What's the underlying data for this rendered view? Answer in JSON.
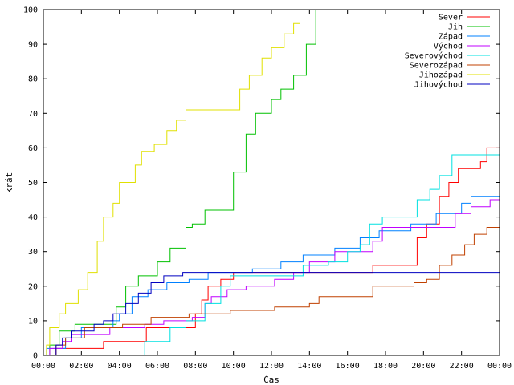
{
  "chart_data": {
    "type": "line",
    "title": "",
    "xlabel": "Čas",
    "ylabel": "krát",
    "xlim": [
      "00:00",
      "24:00"
    ],
    "ylim": [
      0,
      100
    ],
    "x_ticks": [
      "00:00",
      "02:00",
      "04:00",
      "06:00",
      "08:00",
      "10:00",
      "12:00",
      "14:00",
      "16:00",
      "18:00",
      "20:00",
      "22:00",
      "00:00"
    ],
    "y_ticks": [
      0,
      10,
      20,
      30,
      40,
      50,
      60,
      70,
      80,
      90,
      100
    ],
    "grid": false,
    "legend_position": "top-right",
    "step": true,
    "series": [
      {
        "name": "Sever",
        "color": "#ff0000",
        "points": [
          [
            "00:00",
            0
          ],
          [
            "00:30",
            0
          ],
          [
            "00:40",
            2
          ],
          [
            "03:05",
            2
          ],
          [
            "03:10",
            4
          ],
          [
            "05:20",
            4
          ],
          [
            "05:25",
            8
          ],
          [
            "07:50",
            8
          ],
          [
            "08:00",
            12
          ],
          [
            "08:20",
            16
          ],
          [
            "08:40",
            20
          ],
          [
            "09:20",
            22
          ],
          [
            "10:00",
            24
          ],
          [
            "17:00",
            24
          ],
          [
            "17:20",
            26
          ],
          [
            "19:20",
            26
          ],
          [
            "19:40",
            34
          ],
          [
            "20:10",
            38
          ],
          [
            "20:50",
            46
          ],
          [
            "21:20",
            50
          ],
          [
            "21:50",
            54
          ],
          [
            "23:00",
            56
          ],
          [
            "23:20",
            60
          ],
          [
            "24:00",
            63
          ]
        ]
      },
      {
        "name": "Jih",
        "color": "#00c000",
        "points": [
          [
            "00:00",
            0
          ],
          [
            "00:20",
            3
          ],
          [
            "00:50",
            7
          ],
          [
            "01:40",
            9
          ],
          [
            "03:00",
            9
          ],
          [
            "03:50",
            14
          ],
          [
            "04:20",
            20
          ],
          [
            "05:00",
            23
          ],
          [
            "06:00",
            27
          ],
          [
            "06:40",
            31
          ],
          [
            "07:30",
            37
          ],
          [
            "07:50",
            38
          ],
          [
            "08:30",
            42
          ],
          [
            "09:45",
            42
          ],
          [
            "10:00",
            53
          ],
          [
            "10:40",
            64
          ],
          [
            "11:10",
            70
          ],
          [
            "12:00",
            74
          ],
          [
            "12:30",
            77
          ],
          [
            "13:10",
            81
          ],
          [
            "13:50",
            90
          ],
          [
            "14:20",
            100
          ]
        ]
      },
      {
        "name": "Západ",
        "color": "#0080ff",
        "points": [
          [
            "00:00",
            0
          ],
          [
            "00:10",
            2
          ],
          [
            "01:10",
            5
          ],
          [
            "02:00",
            8
          ],
          [
            "03:40",
            10
          ],
          [
            "04:00",
            12
          ],
          [
            "04:40",
            17
          ],
          [
            "05:30",
            19
          ],
          [
            "06:30",
            21
          ],
          [
            "07:40",
            22
          ],
          [
            "08:40",
            24
          ],
          [
            "11:00",
            25
          ],
          [
            "12:30",
            27
          ],
          [
            "13:40",
            29
          ],
          [
            "15:20",
            31
          ],
          [
            "16:40",
            34
          ],
          [
            "17:40",
            36
          ],
          [
            "19:20",
            38
          ],
          [
            "20:40",
            41
          ],
          [
            "22:00",
            44
          ],
          [
            "22:30",
            46
          ],
          [
            "24:00",
            50
          ]
        ]
      },
      {
        "name": "Východ",
        "color": "#c000ff",
        "points": [
          [
            "00:00",
            0
          ],
          [
            "00:20",
            2
          ],
          [
            "01:00",
            4
          ],
          [
            "01:30",
            6
          ],
          [
            "03:30",
            8
          ],
          [
            "05:10",
            8
          ],
          [
            "05:20",
            9
          ],
          [
            "06:10",
            9
          ],
          [
            "06:20",
            10
          ],
          [
            "07:50",
            11
          ],
          [
            "08:30",
            15
          ],
          [
            "08:50",
            17
          ],
          [
            "09:40",
            19
          ],
          [
            "10:40",
            20
          ],
          [
            "12:10",
            22
          ],
          [
            "13:10",
            24
          ],
          [
            "14:00",
            27
          ],
          [
            "15:20",
            30
          ],
          [
            "17:20",
            33
          ],
          [
            "17:50",
            37
          ],
          [
            "21:40",
            41
          ],
          [
            "22:30",
            43
          ],
          [
            "23:30",
            45
          ],
          [
            "24:00",
            45
          ]
        ]
      },
      {
        "name": "Severovýchod",
        "color": "#00e0e0",
        "points": [
          [
            "00:00",
            0
          ],
          [
            "05:10",
            0
          ],
          [
            "05:20",
            4
          ],
          [
            "06:40",
            8
          ],
          [
            "07:30",
            10
          ],
          [
            "08:30",
            15
          ],
          [
            "09:20",
            20
          ],
          [
            "09:50",
            23
          ],
          [
            "13:40",
            26
          ],
          [
            "15:00",
            27
          ],
          [
            "16:00",
            30
          ],
          [
            "16:40",
            32
          ],
          [
            "17:10",
            38
          ],
          [
            "17:50",
            40
          ],
          [
            "19:40",
            45
          ],
          [
            "20:20",
            48
          ],
          [
            "20:50",
            52
          ],
          [
            "21:30",
            58
          ],
          [
            "24:00",
            58
          ]
        ]
      },
      {
        "name": "Severozápad",
        "color": "#c04000",
        "points": [
          [
            "00:00",
            0
          ],
          [
            "00:40",
            3
          ],
          [
            "01:10",
            5
          ],
          [
            "02:10",
            8
          ],
          [
            "03:50",
            8
          ],
          [
            "04:10",
            9
          ],
          [
            "05:10",
            9
          ],
          [
            "05:40",
            11
          ],
          [
            "07:00",
            11
          ],
          [
            "07:40",
            12
          ],
          [
            "09:50",
            13
          ],
          [
            "11:40",
            13
          ],
          [
            "12:10",
            14
          ],
          [
            "14:00",
            15
          ],
          [
            "14:30",
            17
          ],
          [
            "16:50",
            17
          ],
          [
            "17:20",
            20
          ],
          [
            "19:30",
            21
          ],
          [
            "20:10",
            22
          ],
          [
            "20:50",
            26
          ],
          [
            "21:30",
            29
          ],
          [
            "22:10",
            32
          ],
          [
            "22:40",
            35
          ],
          [
            "23:20",
            37
          ],
          [
            "24:00",
            38
          ]
        ]
      },
      {
        "name": "Jihozápad",
        "color": "#e0e000",
        "points": [
          [
            "00:00",
            0
          ],
          [
            "00:10",
            3
          ],
          [
            "00:20",
            8
          ],
          [
            "00:50",
            12
          ],
          [
            "01:10",
            15
          ],
          [
            "01:50",
            19
          ],
          [
            "02:20",
            24
          ],
          [
            "02:50",
            33
          ],
          [
            "03:10",
            40
          ],
          [
            "03:40",
            44
          ],
          [
            "04:00",
            50
          ],
          [
            "04:50",
            55
          ],
          [
            "05:10",
            59
          ],
          [
            "05:50",
            61
          ],
          [
            "06:30",
            65
          ],
          [
            "07:00",
            68
          ],
          [
            "07:30",
            71
          ],
          [
            "10:00",
            71
          ],
          [
            "10:20",
            77
          ],
          [
            "10:50",
            81
          ],
          [
            "11:30",
            86
          ],
          [
            "12:00",
            89
          ],
          [
            "12:40",
            93
          ],
          [
            "13:10",
            96
          ],
          [
            "13:30",
            100
          ]
        ]
      },
      {
        "name": "Jihovýchod",
        "color": "#0000c0",
        "points": [
          [
            "00:00",
            0
          ],
          [
            "00:40",
            3
          ],
          [
            "01:00",
            5
          ],
          [
            "01:30",
            7
          ],
          [
            "02:40",
            9
          ],
          [
            "03:10",
            10
          ],
          [
            "03:40",
            12
          ],
          [
            "04:20",
            15
          ],
          [
            "05:00",
            18
          ],
          [
            "05:40",
            21
          ],
          [
            "06:20",
            23
          ],
          [
            "07:20",
            24
          ],
          [
            "07:40",
            24
          ],
          [
            "10:00",
            24
          ],
          [
            "24:00",
            26
          ]
        ]
      }
    ]
  }
}
